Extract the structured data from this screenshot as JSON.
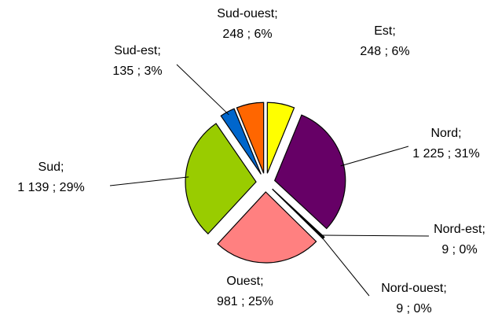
{
  "chart_data": {
    "type": "pie",
    "categories": [
      "Est;",
      "Nord;",
      "Nord-est;",
      "Nord-ouest;",
      "Ouest;",
      "Sud;",
      "Sud-est;",
      "Sud-ouest;"
    ],
    "values": [
      248,
      1225,
      9,
      9,
      981,
      1139,
      135,
      248
    ],
    "value_labels": [
      "248 ; 6%",
      "1 225 ; 31%",
      "9 ; 0%",
      "9 ; 0%",
      "981 ; 25%",
      "1 139 ; 29%",
      "135 ; 3%",
      "248 ; 6%"
    ],
    "colors": [
      "#ffff00",
      "#660066",
      "#ccffff",
      "#000080",
      "#ff8080",
      "#99cc00",
      "#0066cc",
      "#ff6600"
    ]
  }
}
